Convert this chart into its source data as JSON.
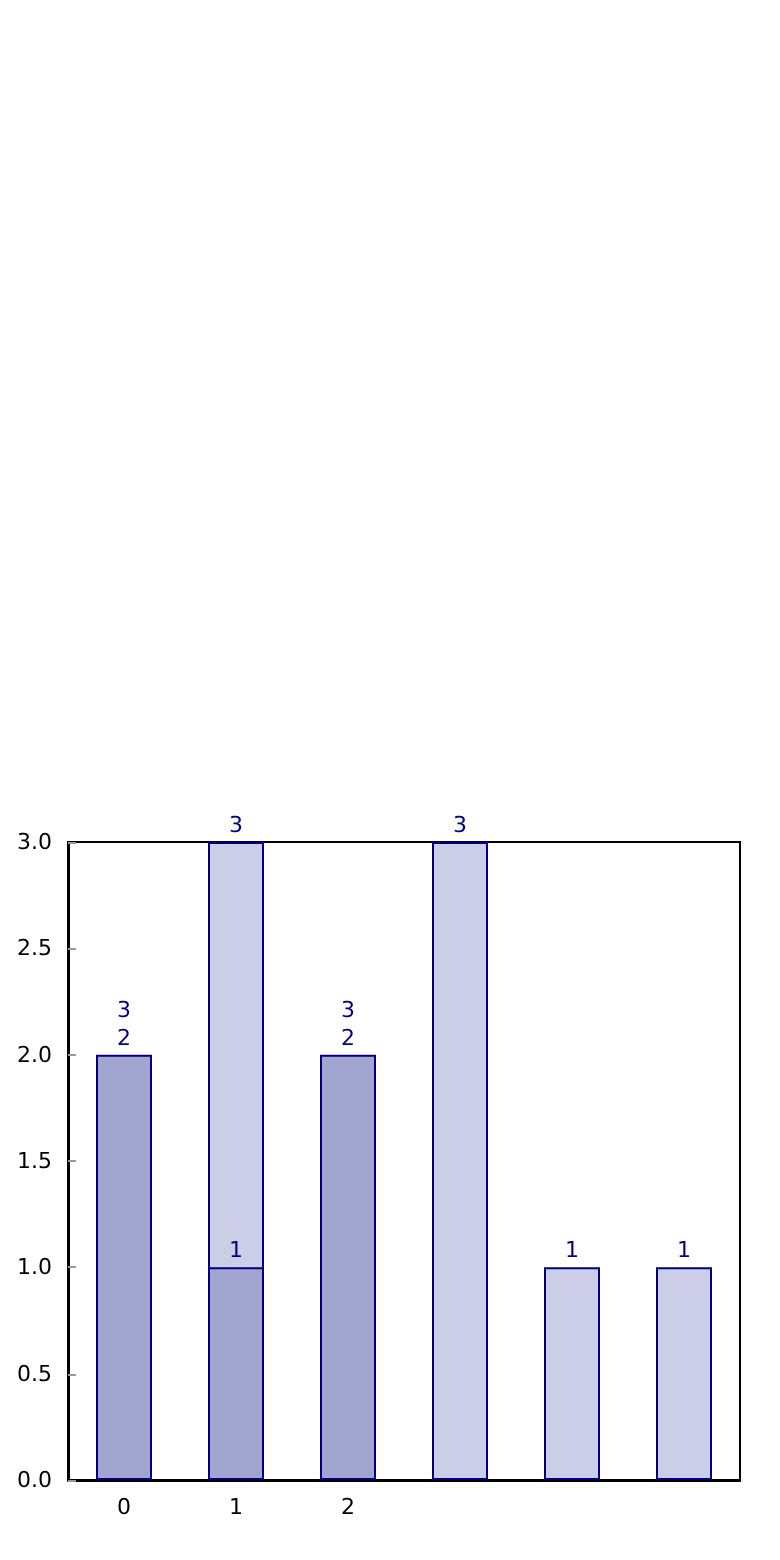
{
  "chart_data": {
    "type": "bar",
    "categories": [
      "0",
      "1",
      "2",
      null,
      null,
      null
    ],
    "series": [
      {
        "color": "#cccde6",
        "values": [
          null,
          3,
          null,
          3,
          1,
          1
        ]
      },
      {
        "color": "#a3a5d1",
        "values": [
          2,
          1,
          2,
          null,
          null,
          null
        ]
      }
    ],
    "ylim": [
      0,
      3
    ],
    "yticks": [
      {
        "value": 0,
        "label": "0.0"
      },
      {
        "value": 0.5,
        "label": "0.5"
      },
      {
        "value": 1,
        "label": "1.0"
      },
      {
        "value": 1.5,
        "label": "1.5"
      },
      {
        "value": 2,
        "label": "2.0"
      },
      {
        "value": 2.5,
        "label": "2.5"
      },
      {
        "value": 3,
        "label": "3.0"
      }
    ],
    "data_labels": true,
    "grid": false,
    "annotations": [
      {
        "text": "3",
        "x": "0",
        "y": 2
      },
      {
        "text": "3",
        "x": "2",
        "y": 2
      }
    ]
  }
}
